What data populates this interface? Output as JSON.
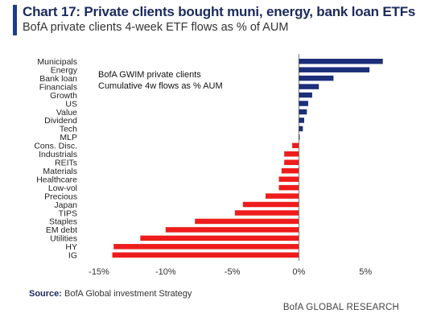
{
  "header": {
    "title": "Chart 17: Private clients bought muni, energy, bank loan ETFs",
    "subtitle": "BofA private clients 4-week ETF flows as % of AUM"
  },
  "annotation": {
    "line1": "BofA GWIM private clients",
    "line2": "Cumulative 4w flows as % AUM"
  },
  "footer": {
    "source_label": "Source:",
    "source_text": "BofA Global investment Strategy",
    "brand": "BofA GLOBAL RESEARCH"
  },
  "colors": {
    "positive": "#1c2f7a",
    "negative": "#ee1c1c",
    "title": "#1c2a5c",
    "accent": "#1c3c8c"
  },
  "chart_data": {
    "type": "bar",
    "orientation": "horizontal",
    "categories": [
      "Municipals",
      "Energy",
      "Bank loan",
      "Financials",
      "Growth",
      "US",
      "Value",
      "Dividend",
      "Tech",
      "MLP",
      "Cons. Disc.",
      "Industrials",
      "REITs",
      "Materials",
      "Healthcare",
      "Low-vol",
      "Precious",
      "Japan",
      "TIPS",
      "Staples",
      "EM debt",
      "Utilities",
      "HY",
      "IG"
    ],
    "values": [
      6.3,
      5.3,
      2.6,
      1.5,
      1.0,
      0.7,
      0.6,
      0.4,
      0.3,
      0.05,
      -0.5,
      -1.1,
      -1.1,
      -1.3,
      -1.5,
      -1.5,
      -2.5,
      -4.2,
      -4.8,
      -7.8,
      -10.0,
      -11.9,
      -13.9,
      -14.0
    ],
    "xlim": [
      -15,
      6.5
    ],
    "xticks": [
      -15,
      -10,
      -5,
      0,
      5
    ],
    "xtick_labels": [
      "-15%",
      "-10%",
      "-5%",
      "0%",
      "5%"
    ],
    "xlabel": "",
    "ylabel": "",
    "grid": false,
    "legend": "none"
  }
}
